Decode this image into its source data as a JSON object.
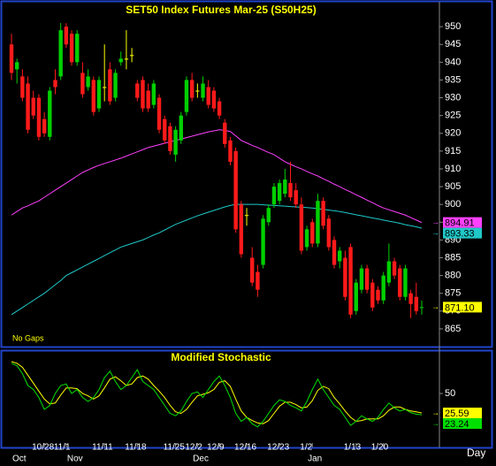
{
  "chart_data": [
    {
      "type": "candlestick",
      "title": "SET50 Index Futures Mar-25 (S50H25)",
      "annotation": "No Gaps",
      "open": [
        945,
        938,
        936,
        934,
        930,
        930,
        924,
        919,
        935,
        936,
        950,
        948,
        940,
        937,
        933,
        935,
        927,
        933,
        938,
        930,
        940,
        941,
        942,
        934,
        935,
        932,
        928,
        930,
        924,
        922,
        914,
        918,
        926,
        935,
        932,
        930,
        933,
        932,
        929,
        923,
        918,
        915,
        900,
        897,
        885,
        881,
        883,
        895,
        900,
        901,
        903,
        906,
        904,
        900,
        888,
        895,
        889,
        901,
        896,
        890,
        884,
        885,
        888,
        870,
        876,
        882,
        878,
        876,
        873,
        878,
        884,
        882,
        874,
        875,
        874,
        871
      ],
      "high": [
        948,
        941,
        938,
        936,
        932,
        931,
        926,
        933,
        938,
        951,
        951,
        949,
        949,
        940,
        938,
        936,
        936,
        945,
        940,
        938,
        943,
        949,
        944,
        935,
        936,
        934,
        935,
        931,
        925,
        923,
        922,
        926,
        936,
        937,
        934,
        936,
        935,
        933,
        930,
        924,
        919,
        916,
        901,
        899,
        888,
        883,
        897,
        900,
        906,
        907,
        910,
        912,
        906,
        902,
        894,
        896,
        903,
        902,
        897,
        891,
        888,
        887,
        889,
        879,
        883,
        883,
        879,
        877,
        881,
        889,
        885,
        883,
        883,
        876,
        878,
        873
      ],
      "low": [
        935,
        934,
        929,
        920,
        924,
        918,
        919,
        918,
        931,
        935,
        944,
        939,
        939,
        930,
        932,
        925,
        926,
        929,
        928,
        929,
        939,
        938,
        940,
        929,
        926,
        926,
        927,
        920,
        917,
        914,
        912,
        917,
        925,
        929,
        930,
        929,
        927,
        926,
        924,
        916,
        911,
        892,
        885,
        894,
        877,
        874,
        882,
        894,
        899,
        900,
        902,
        901,
        899,
        886,
        887,
        888,
        888,
        893,
        887,
        882,
        882,
        873,
        868,
        869,
        875,
        875,
        870,
        872,
        872,
        877,
        879,
        873,
        873,
        868,
        869,
        869
      ],
      "close": [
        937,
        940,
        930,
        921,
        925,
        919,
        920,
        932,
        933,
        949,
        945,
        940,
        948,
        931,
        936,
        926,
        935,
        933,
        929,
        937,
        941,
        941,
        942,
        930,
        927,
        927,
        934,
        921,
        918,
        915,
        921,
        925,
        935,
        930,
        932,
        934,
        928,
        927,
        925,
        917,
        912,
        893,
        886,
        897,
        878,
        876,
        896,
        899,
        905,
        906,
        907,
        902,
        900,
        887,
        893,
        889,
        901,
        894,
        888,
        883,
        887,
        874,
        869,
        878,
        882,
        876,
        871,
        873,
        880,
        884,
        880,
        874,
        882,
        872,
        870,
        871.1
      ],
      "close_label": "871.10",
      "up_color": "#00d000",
      "down_color": "#ff1a1a",
      "doji_color": "#ffff00",
      "series": [
        {
          "color": "#ff40ff",
          "values": [
            897,
            898,
            899,
            899.6,
            900.3,
            901,
            902,
            903,
            904,
            905,
            906,
            907,
            908,
            909,
            909.7,
            910.4,
            911,
            911.5,
            912,
            912.5,
            913,
            913.6,
            914.2,
            914.8,
            915.4,
            916,
            916.4,
            916.8,
            917.2,
            917.6,
            918,
            918.4,
            918.8,
            919.2,
            919.6,
            920,
            920.4,
            920.7,
            921,
            920.8,
            920.5,
            919.3,
            918,
            917.3,
            916.6,
            916,
            915.3,
            914.6,
            914,
            913,
            912,
            911.3,
            910.6,
            910,
            909.3,
            908.6,
            908,
            907.2,
            906.5,
            905.7,
            905,
            904.2,
            903.5,
            902.7,
            902,
            901.2,
            900.5,
            899.7,
            899,
            898.5,
            898,
            897.5,
            897,
            896.3,
            895.6,
            894.91
          ]
        },
        {
          "color": "#20c8c8",
          "values": [
            869,
            870,
            871,
            872,
            873,
            874,
            875,
            876.2,
            877.4,
            878.6,
            880,
            880.8,
            881.6,
            882.4,
            883.2,
            884,
            884.8,
            885.6,
            886.4,
            887.2,
            888,
            888.5,
            889,
            889.5,
            890,
            890.7,
            891.4,
            892,
            892.8,
            893.6,
            894.4,
            895,
            895.6,
            896.2,
            896.8,
            897.3,
            897.8,
            898.3,
            898.8,
            899.3,
            899.7,
            900,
            900,
            900,
            900,
            900,
            899.9,
            899.8,
            899.7,
            899.6,
            899.5,
            899.4,
            899.3,
            899.2,
            899.1,
            899,
            898.8,
            898.6,
            898.4,
            898.2,
            898,
            897.7,
            897.4,
            897.1,
            896.8,
            896.5,
            896.2,
            895.9,
            895.6,
            895.3,
            895,
            894.7,
            894.3,
            894,
            893.7,
            893.33
          ]
        }
      ],
      "ylim": [
        860,
        957
      ],
      "yticks": [
        865,
        870,
        875,
        880,
        885,
        890,
        895,
        900,
        905,
        910,
        915,
        920,
        925,
        930,
        935,
        940,
        945,
        950
      ]
    },
    {
      "type": "line",
      "title": "Modified Stochastic",
      "x_label": "Day",
      "categories": [
        null,
        null,
        null,
        null,
        null,
        null,
        "10/28",
        null,
        null,
        null,
        "11/1",
        null,
        null,
        null,
        null,
        null,
        null,
        "11/11",
        null,
        null,
        null,
        null,
        null,
        "11/18",
        null,
        null,
        null,
        null,
        null,
        null,
        "11/25",
        null,
        null,
        null,
        "12/2",
        null,
        null,
        null,
        "12/9",
        null,
        null,
        null,
        null,
        "12/16",
        null,
        null,
        null,
        null,
        null,
        "12/23",
        null,
        null,
        null,
        null,
        null,
        "1/2",
        null,
        null,
        null,
        null,
        null,
        null,
        null,
        "1/13",
        null,
        null,
        null,
        null,
        "1/20",
        null,
        null,
        null,
        null,
        null,
        null,
        null
      ],
      "months": [
        "Oct",
        null,
        null,
        null,
        null,
        null,
        null,
        null,
        null,
        null,
        "Nov",
        null,
        null,
        null,
        null,
        null,
        null,
        null,
        null,
        null,
        null,
        null,
        null,
        null,
        null,
        null,
        null,
        null,
        null,
        null,
        null,
        null,
        null,
        "Dec",
        null,
        null,
        null,
        null,
        null,
        null,
        null,
        null,
        null,
        null,
        null,
        null,
        null,
        null,
        null,
        null,
        null,
        null,
        null,
        null,
        "Jan",
        null,
        null,
        null,
        null,
        null,
        null,
        null,
        null,
        null,
        null,
        null,
        null,
        null,
        null,
        null,
        null,
        null,
        null,
        null,
        null,
        null
      ],
      "series": [
        {
          "color": "#ffff00",
          "values": [
            90,
            88,
            83,
            73,
            63,
            53,
            43,
            37,
            38,
            48,
            57,
            57,
            56,
            50,
            47,
            43,
            47,
            57,
            68,
            71,
            66,
            60,
            62,
            70,
            72,
            68,
            60,
            53,
            45,
            35,
            27,
            25,
            30,
            39,
            47,
            49,
            51,
            55,
            64,
            66,
            59,
            43,
            28,
            20,
            16,
            13,
            12,
            16,
            25,
            34,
            39,
            39,
            36,
            32,
            33,
            41,
            54,
            59,
            56,
            45,
            37,
            28,
            20,
            15,
            16,
            18,
            18,
            18,
            22,
            29,
            33,
            33,
            30,
            28,
            27,
            25.59
          ]
        },
        {
          "color": "#00e000",
          "values": [
            88,
            85,
            75,
            60,
            55,
            45,
            30,
            35,
            50,
            60,
            62,
            50,
            55,
            45,
            40,
            45,
            55,
            70,
            78,
            65,
            55,
            60,
            70,
            80,
            65,
            60,
            55,
            45,
            35,
            25,
            22,
            28,
            40,
            50,
            52,
            45,
            55,
            65,
            72,
            60,
            45,
            25,
            15,
            20,
            12,
            8,
            15,
            25,
            35,
            42,
            40,
            35,
            32,
            28,
            40,
            55,
            68,
            55,
            45,
            35,
            30,
            20,
            10,
            15,
            22,
            18,
            15,
            20,
            30,
            38,
            32,
            28,
            30,
            26,
            24,
            23.24
          ]
        }
      ],
      "ylim": [
        0,
        100
      ],
      "yticks": [
        50
      ]
    }
  ]
}
